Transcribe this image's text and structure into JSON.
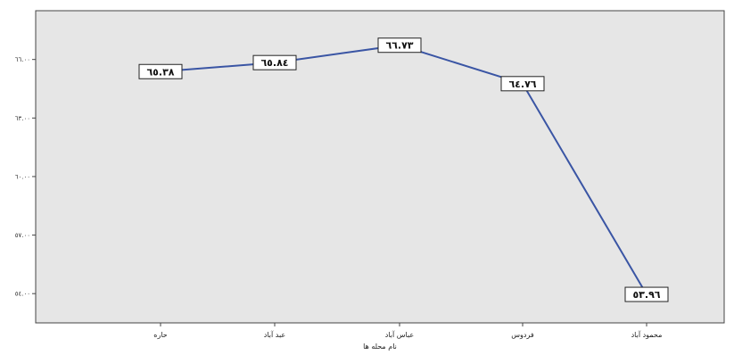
{
  "chart_data": {
    "type": "line",
    "categories": [
      "حاره",
      "عبد آباد",
      "عباس آباد",
      "فردوس",
      "محمود آباد"
    ],
    "values": [
      65.38,
      65.84,
      66.73,
      64.76,
      53.96
    ],
    "data_labels": [
      "٦٥.٣٨",
      "٦٥.٨٤",
      "٦٦.٧٣",
      "٦٤.٧٦",
      "٥٣.٩٦"
    ],
    "xlabel": "نام محله ها",
    "ylabel": "",
    "ylim": [
      52.5,
      68.5
    ],
    "yticks": [
      54,
      57,
      60,
      63,
      66
    ],
    "ytick_labels": [
      "٥٤.٠٠",
      "٥٧.٠٠",
      "٦٠.٠٠",
      "٦٣.٠٠",
      "٦٦.٠٠"
    ],
    "grid": false,
    "colors": {
      "line": "#3a55a4",
      "plot_background": "#e6e6e6",
      "axis": "#444444",
      "label_box_fill": "#ffffff",
      "label_box_stroke": "#222222"
    }
  }
}
